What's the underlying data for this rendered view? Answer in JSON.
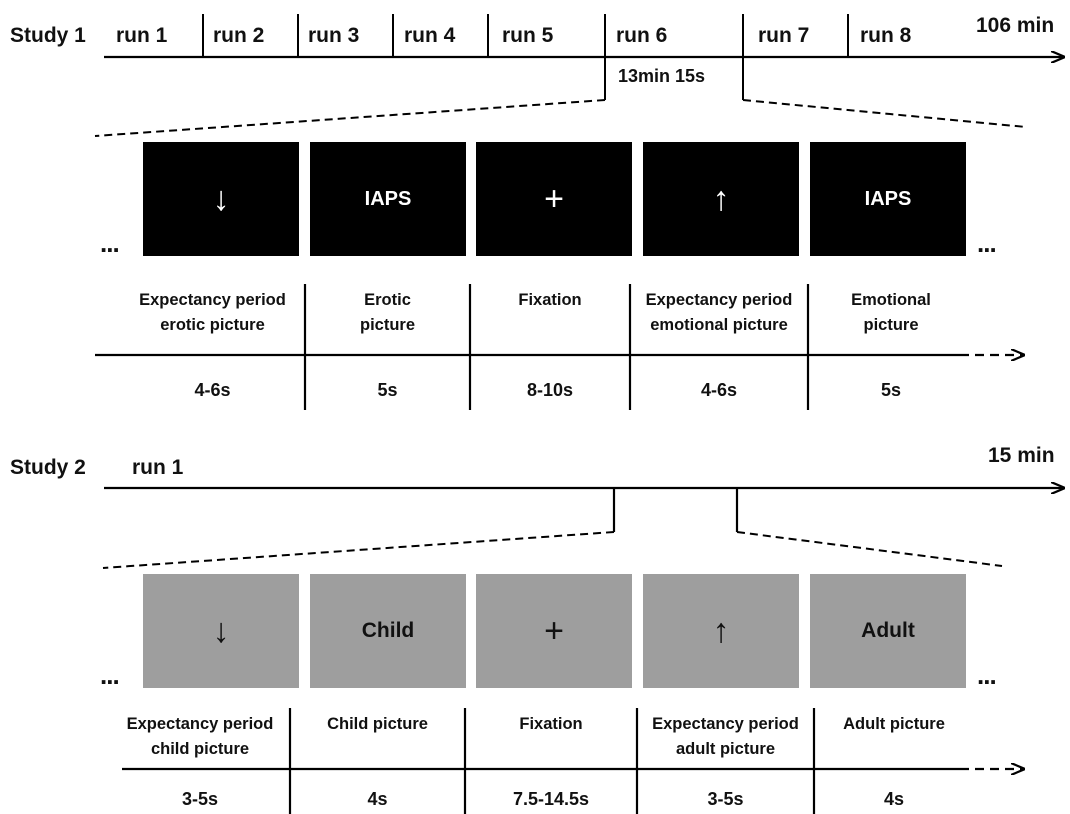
{
  "study1": {
    "label": "Study 1",
    "total": "106 min",
    "runs": [
      "run 1",
      "run 2",
      "run 3",
      "run 4",
      "run 5",
      "run 6",
      "run 7",
      "run 8"
    ],
    "run_duration": "13min 15s",
    "panels": [
      {
        "symbol": "↓"
      },
      {
        "text": "IAPS"
      },
      {
        "symbol": "+"
      },
      {
        "symbol": "↑"
      },
      {
        "text": "IAPS"
      }
    ],
    "phases": [
      {
        "line1": "Expectancy period",
        "line2": "erotic picture",
        "duration": "4-6s"
      },
      {
        "line1": "Erotic",
        "line2": "picture",
        "duration": "5s"
      },
      {
        "line1": "Fixation",
        "line2": "",
        "duration": "8-10s"
      },
      {
        "line1": "Expectancy period",
        "line2": "emotional picture",
        "duration": "4-6s"
      },
      {
        "line1": "Emotional",
        "line2": "picture",
        "duration": "5s"
      }
    ],
    "ellipsis": "..."
  },
  "study2": {
    "label": "Study 2",
    "total": "15 min",
    "run": "run 1",
    "panels": [
      {
        "symbol": "↓"
      },
      {
        "text": "Child"
      },
      {
        "symbol": "+"
      },
      {
        "symbol": "↑"
      },
      {
        "text": "Adult"
      }
    ],
    "phases": [
      {
        "line1": "Expectancy period",
        "line2": "child picture",
        "duration": "3-5s"
      },
      {
        "line1": "Child picture",
        "line2": "",
        "duration": "4s"
      },
      {
        "line1": "Fixation",
        "line2": "",
        "duration": "7.5-14.5s"
      },
      {
        "line1": "Expectancy period",
        "line2": "adult picture",
        "duration": "3-5s"
      },
      {
        "line1": "Adult picture",
        "line2": "",
        "duration": "4s"
      }
    ],
    "ellipsis": "..."
  },
  "colors": {
    "dark_panel": "#000000",
    "light_panel": "#9e9e9e",
    "line": "#000000"
  }
}
